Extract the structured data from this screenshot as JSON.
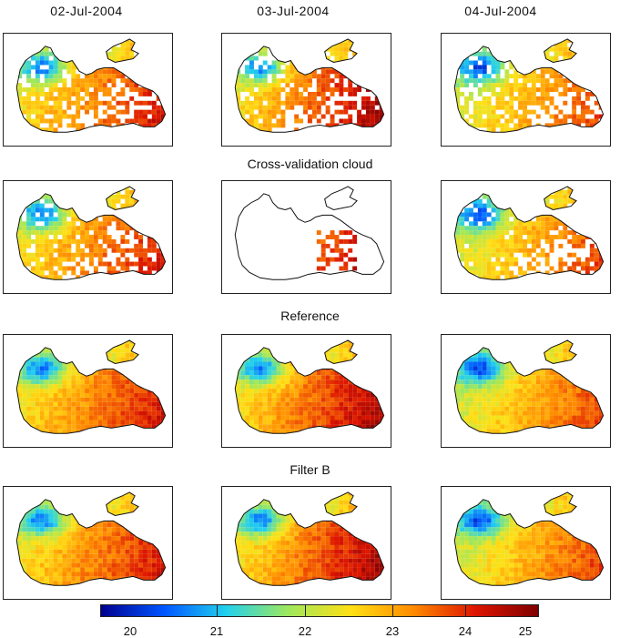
{
  "dates": [
    "02-Jul-2004",
    "03-Jul-2004",
    "04-Jul-2004"
  ],
  "row_labels": {
    "row2": "Cross-validation cloud",
    "row3": "Reference",
    "row4": "Filter B"
  },
  "colorbar": {
    "ticks": [
      "20",
      "21",
      "22",
      "23",
      "24",
      "25"
    ],
    "min": 20,
    "max": 25,
    "colormap": [
      "#00008f",
      "#0055ff",
      "#22d0ee",
      "#9ee85c",
      "#ffe015",
      "#ff8a00",
      "#dd1500",
      "#7f0000"
    ]
  },
  "panels": [
    {
      "row": "top",
      "date": "02-Jul-2004",
      "coverage": "partial"
    },
    {
      "row": "top",
      "date": "03-Jul-2004",
      "coverage": "partial"
    },
    {
      "row": "top",
      "date": "04-Jul-2004",
      "coverage": "partial"
    },
    {
      "row": "cross-validation",
      "date": "02-Jul-2004",
      "coverage": "partial"
    },
    {
      "row": "cross-validation",
      "date": "03-Jul-2004",
      "coverage": "sparse"
    },
    {
      "row": "cross-validation",
      "date": "04-Jul-2004",
      "coverage": "partial"
    },
    {
      "row": "reference",
      "date": "02-Jul-2004",
      "coverage": "full"
    },
    {
      "row": "reference",
      "date": "03-Jul-2004",
      "coverage": "full"
    },
    {
      "row": "reference",
      "date": "04-Jul-2004",
      "coverage": "full"
    },
    {
      "row": "filter-b",
      "date": "02-Jul-2004",
      "coverage": "full"
    },
    {
      "row": "filter-b",
      "date": "03-Jul-2004",
      "coverage": "full"
    },
    {
      "row": "filter-b",
      "date": "04-Jul-2004",
      "coverage": "full"
    }
  ]
}
